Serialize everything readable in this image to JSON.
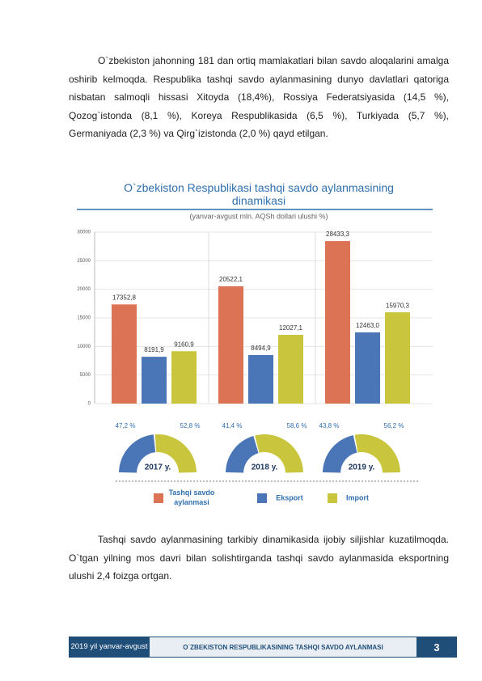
{
  "paragraphs": [
    "O`zbekiston jahonning 181 dan ortiq mamlakatlari bilan savdo aloqalarini amalga oshirib kelmoqda. Respublika tashqi savdo aylanmasining dunyo davlatlari qatoriga nisbatan salmoqli hissasi Xitoyda (18,4%), Rossiya Federatsiyasida (14,5 %), Qozog`istonda (8,1 %), Koreya Respublikasida (6,5 %), Turkiyada (5,7 %), Germaniyada (2,3 %) va Qirg`izistonda (2,0 %) qayd etilgan.",
    "Tashqi savdo aylanmasining tarkibiy dinamikasida ijobiy siljishlar kuzatilmoqda. O`tgan yilning mos davri bilan solishtirganda tashqi savdo aylanmasida eksportning ulushi 2,4 foizga ortgan."
  ],
  "chart_data": [
    {
      "type": "bar",
      "title": "O`zbekiston Respublikasi tashqi savdo aylanmasining dinamikasi",
      "subtitle": "(yanvar-avgust  mln. AQSh dollari  ulushi %)",
      "categories": [
        null,
        null,
        null
      ],
      "series": [
        {
          "name": "Tashqi savdo aylanmasi",
          "color": "#dc7355",
          "values": [
            17352.8,
            20522.1,
            28433.3
          ],
          "value_labels": [
            "17352,8",
            "20522,1",
            "28433,3"
          ]
        },
        {
          "name": "Eksport",
          "color": "#4a76b8",
          "values": [
            8191.9,
            8494.9,
            12463.0
          ],
          "value_labels": [
            "8191,9",
            "8494,9",
            "12463,0"
          ]
        },
        {
          "name": "Import",
          "color": "#c9c53d",
          "values": [
            9160.9,
            12027.1,
            15970.3
          ],
          "value_labels": [
            "9160,9",
            "12027,1",
            "15970,3"
          ]
        }
      ],
      "ylim": [
        0,
        30000
      ],
      "yticks": [
        0,
        5000,
        10000,
        15000,
        20000,
        25000,
        30000
      ],
      "grid": true
    },
    {
      "type": "donut",
      "categories": [
        "2017 y.",
        "2018 y.",
        "2019 y."
      ],
      "series": [
        {
          "color": "#4a76b8",
          "values": [
            47.2,
            41.4,
            43.8
          ],
          "value_labels": [
            "47,2 %",
            "41,4 %",
            "43,8 %"
          ]
        },
        {
          "color": "#c9c53d",
          "values": [
            52.8,
            58.6,
            56.2
          ],
          "value_labels": [
            "52,8 %",
            "58,6 %",
            "56,2 %"
          ]
        }
      ]
    }
  ],
  "footer": {
    "left": "2019 yil yanvar-avgust",
    "title": "O`ZBEKISTON RESPUBLIKASINING TASHQI SAVDO AYLANMASI",
    "page": "3"
  }
}
